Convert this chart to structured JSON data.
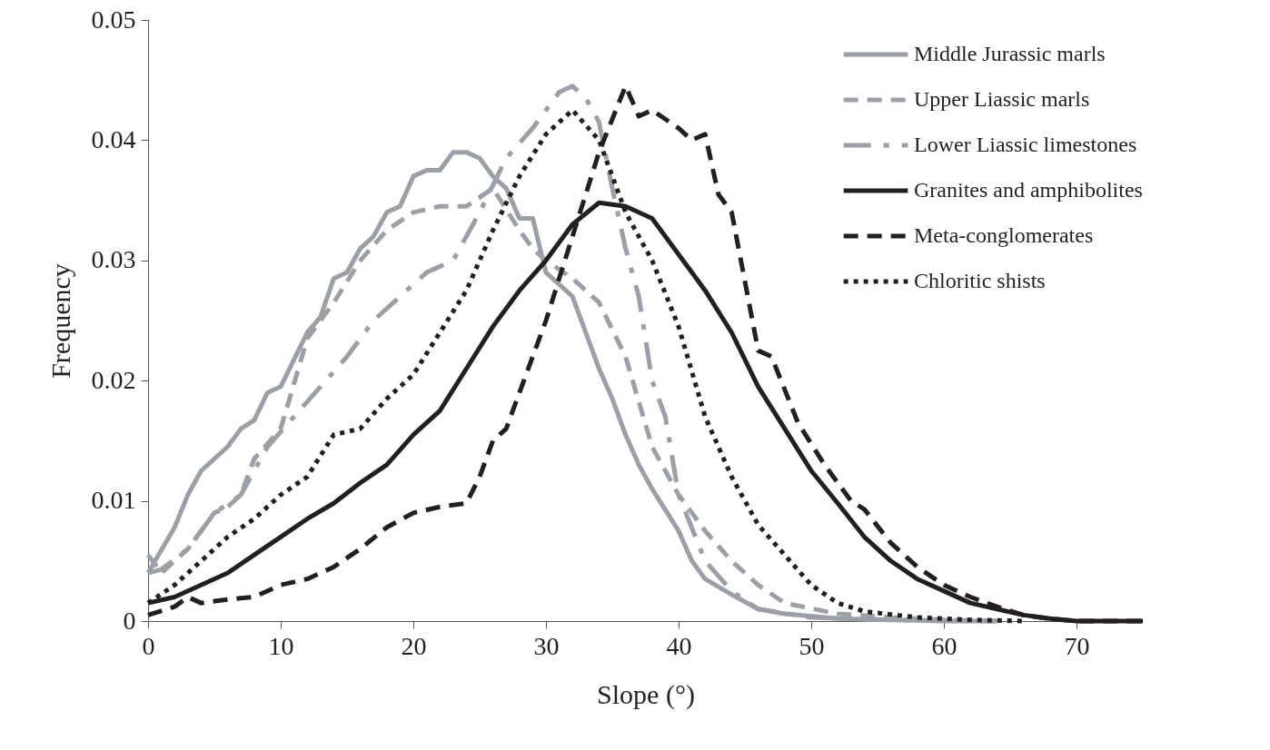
{
  "chart_data": {
    "type": "line",
    "xlabel": "Slope (°)",
    "ylabel": "Frequency",
    "xlim": [
      0,
      75
    ],
    "xticks": [
      0,
      10,
      20,
      30,
      40,
      50,
      60,
      70
    ],
    "ylim": [
      0,
      0.05
    ],
    "yticks": [
      0,
      0.01,
      0.02,
      0.03,
      0.04,
      0.05
    ],
    "grid": false,
    "legend": "top right",
    "marker": "none",
    "series": [
      {
        "name": "Middle Jurassic marls",
        "color": "#9aa0a6",
        "line_style": "solid",
        "x": [
          0,
          2,
          3,
          4,
          6,
          7,
          8,
          9,
          10,
          12,
          13,
          14,
          15,
          16,
          17,
          18,
          19,
          20,
          21,
          22,
          23,
          24,
          25,
          26,
          27,
          28,
          29,
          30,
          32,
          33,
          34,
          35,
          36,
          37,
          38,
          40,
          41,
          42,
          44,
          46,
          48,
          52,
          56,
          60,
          64
        ],
        "values": [
          0.004,
          0.0078,
          0.0105,
          0.0125,
          0.0145,
          0.016,
          0.0167,
          0.019,
          0.0195,
          0.024,
          0.0253,
          0.0285,
          0.029,
          0.031,
          0.032,
          0.034,
          0.0345,
          0.037,
          0.0375,
          0.0375,
          0.039,
          0.039,
          0.0385,
          0.037,
          0.036,
          0.0335,
          0.0335,
          0.029,
          0.027,
          0.024,
          0.021,
          0.0185,
          0.0155,
          0.013,
          0.011,
          0.0075,
          0.005,
          0.0035,
          0.0022,
          0.001,
          0.0006,
          0.0002,
          0.0001,
          0,
          0
        ]
      },
      {
        "name": "Upper Liassic marls",
        "color": "#9aa0a6",
        "line_style": "dashed",
        "x": [
          0,
          1,
          3,
          5,
          6,
          7,
          8,
          10,
          12,
          14,
          16,
          18,
          20,
          22,
          24,
          26,
          28,
          29,
          30,
          32,
          34,
          36,
          38,
          40,
          42,
          44,
          46,
          48,
          52,
          56,
          60,
          64
        ],
        "values": [
          0.0055,
          0.004,
          0.006,
          0.009,
          0.0095,
          0.0105,
          0.0135,
          0.016,
          0.0235,
          0.0265,
          0.03,
          0.0325,
          0.034,
          0.0345,
          0.0345,
          0.036,
          0.0325,
          0.031,
          0.03,
          0.0285,
          0.0265,
          0.022,
          0.0145,
          0.0105,
          0.0075,
          0.005,
          0.003,
          0.0015,
          0.0006,
          0.0003,
          0.0001,
          0
        ]
      },
      {
        "name": "Lower Liassic limestones",
        "color": "#9aa0a6",
        "line_style": "dashed",
        "x": [
          0,
          1,
          3,
          5,
          7,
          9,
          11,
          13,
          15,
          17,
          19,
          21,
          23,
          25,
          27,
          29,
          31,
          32,
          33,
          34,
          35,
          36,
          37,
          38,
          39,
          40,
          42,
          44,
          46,
          50,
          56,
          64
        ],
        "values": [
          0.004,
          0.0043,
          0.006,
          0.009,
          0.0105,
          0.0145,
          0.017,
          0.0195,
          0.022,
          0.025,
          0.027,
          0.029,
          0.03,
          0.034,
          0.0385,
          0.041,
          0.044,
          0.0445,
          0.0435,
          0.0415,
          0.036,
          0.031,
          0.027,
          0.02,
          0.017,
          0.0105,
          0.005,
          0.0025,
          0.001,
          0.0003,
          0.0001,
          0
        ]
      },
      {
        "name": "Granites and amphibolites",
        "color": "#231f20",
        "line_style": "solid",
        "x": [
          0,
          2,
          4,
          6,
          8,
          10,
          12,
          14,
          16,
          18,
          20,
          22,
          24,
          26,
          28,
          30,
          32,
          34,
          36,
          38,
          40,
          42,
          44,
          46,
          48,
          50,
          52,
          54,
          56,
          58,
          60,
          62,
          64,
          66,
          68,
          70,
          75
        ],
        "values": [
          0.0015,
          0.002,
          0.003,
          0.004,
          0.0055,
          0.007,
          0.0085,
          0.0098,
          0.0115,
          0.013,
          0.0155,
          0.0175,
          0.021,
          0.0245,
          0.0275,
          0.03,
          0.033,
          0.0348,
          0.0345,
          0.0335,
          0.0305,
          0.0275,
          0.024,
          0.0195,
          0.016,
          0.0125,
          0.0098,
          0.007,
          0.005,
          0.0035,
          0.0025,
          0.0015,
          0.001,
          0.0005,
          0.0002,
          0,
          0
        ]
      },
      {
        "name": "Meta-conglomerates",
        "color": "#231f20",
        "line_style": "dashed",
        "x": [
          0,
          2,
          3,
          4,
          6,
          8,
          10,
          12,
          14,
          16,
          18,
          20,
          22,
          24,
          25,
          26,
          27,
          28,
          30,
          32,
          34,
          36,
          37,
          38,
          40,
          41,
          42,
          43,
          44,
          46,
          47,
          49,
          51,
          53,
          54,
          56,
          58,
          60,
          62,
          64,
          66,
          68,
          70,
          75
        ],
        "values": [
          0.0005,
          0.0012,
          0.002,
          0.0015,
          0.0018,
          0.002,
          0.003,
          0.0035,
          0.0045,
          0.006,
          0.0078,
          0.009,
          0.0095,
          0.0098,
          0.012,
          0.015,
          0.016,
          0.019,
          0.025,
          0.032,
          0.039,
          0.0445,
          0.042,
          0.0425,
          0.041,
          0.04,
          0.0405,
          0.0355,
          0.034,
          0.0225,
          0.022,
          0.0165,
          0.013,
          0.01,
          0.0093,
          0.0065,
          0.0045,
          0.003,
          0.002,
          0.0012,
          0.0005,
          0.0002,
          0,
          0
        ]
      },
      {
        "name": "Chloritic shists",
        "color": "#231f20",
        "line_style": "dotted",
        "x": [
          0,
          2,
          4,
          6,
          8,
          10,
          12,
          14,
          16,
          18,
          20,
          22,
          24,
          26,
          28,
          30,
          32,
          34,
          36,
          38,
          40,
          42,
          44,
          46,
          48,
          50,
          52,
          54,
          58,
          62,
          66
        ],
        "values": [
          0.0015,
          0.003,
          0.005,
          0.007,
          0.0085,
          0.0105,
          0.012,
          0.0155,
          0.016,
          0.0185,
          0.0205,
          0.024,
          0.0275,
          0.0325,
          0.037,
          0.0405,
          0.0425,
          0.04,
          0.034,
          0.03,
          0.0245,
          0.017,
          0.012,
          0.008,
          0.0055,
          0.003,
          0.0015,
          0.0008,
          0.0003,
          0.0001,
          0
        ]
      }
    ]
  }
}
